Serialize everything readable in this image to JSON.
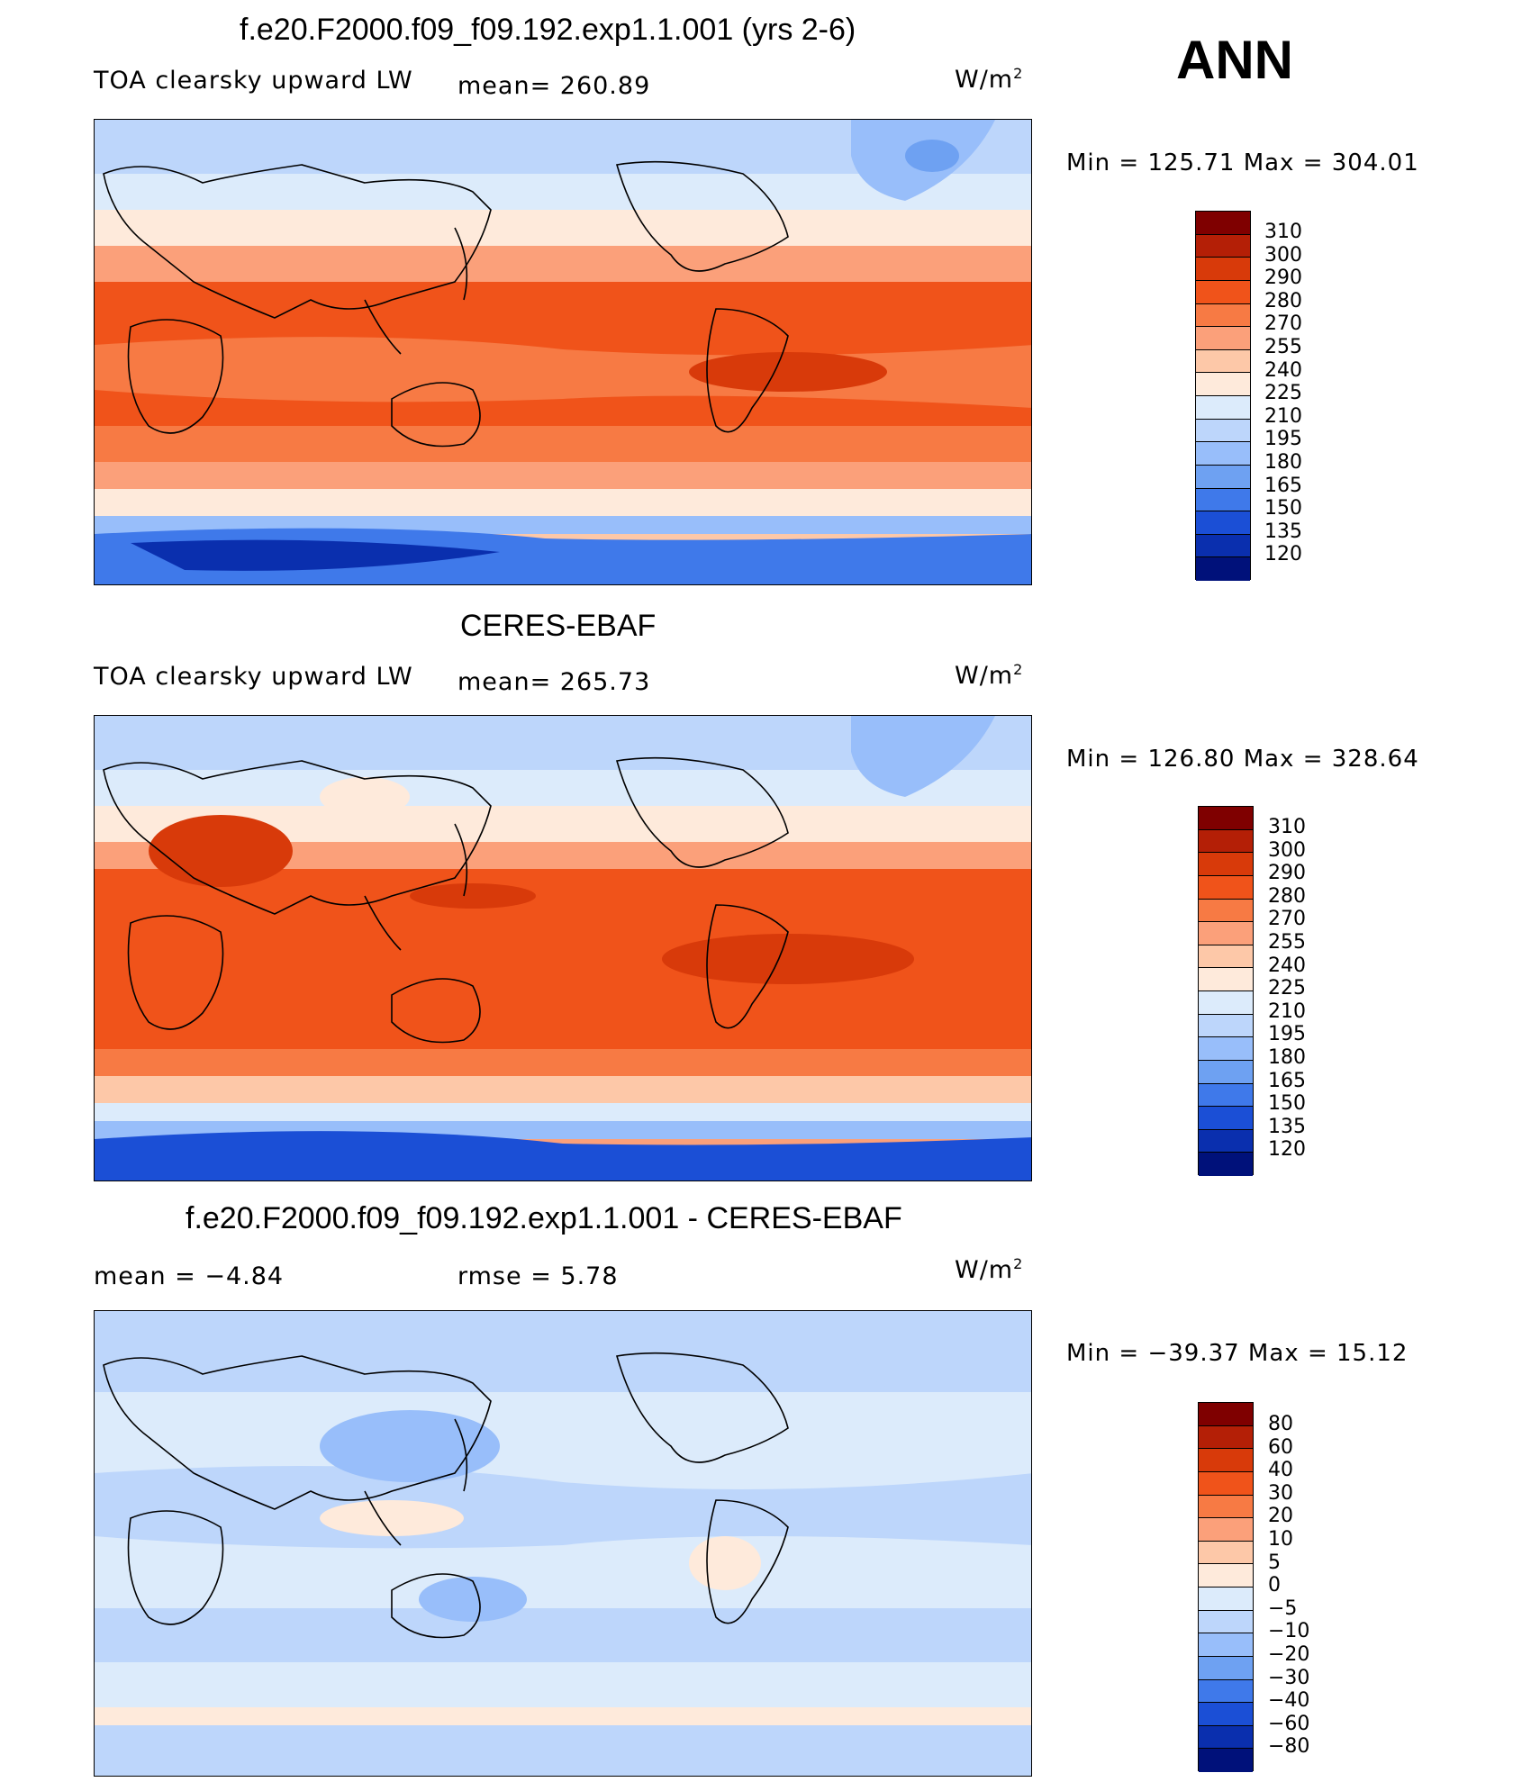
{
  "season": "ANN",
  "unit_base": "W/m",
  "unit_exp": "2",
  "panels": [
    {
      "title": "f.e20.F2000.f09_f09.192.exp1.1.001 (yrs 2-6)",
      "left_label": "TOA clearsky upward LW",
      "mid_label": "mean=  260.89",
      "minmax": "Min  =  125.71  Max  =  304.01",
      "levels": [
        "310",
        "300",
        "290",
        "280",
        "270",
        "255",
        "240",
        "225",
        "210",
        "195",
        "180",
        "165",
        "150",
        "135",
        "120"
      ]
    },
    {
      "title": "CERES-EBAF",
      "left_label": "TOA clearsky upward LW",
      "mid_label": "mean=  265.73",
      "minmax": "Min  =  126.80  Max  =  328.64",
      "levels": [
        "310",
        "300",
        "290",
        "280",
        "270",
        "255",
        "240",
        "225",
        "210",
        "195",
        "180",
        "165",
        "150",
        "135",
        "120"
      ]
    },
    {
      "title": "f.e20.F2000.f09_f09.192.exp1.1.001 - CERES-EBAF",
      "left_label": "mean  =     −4.84",
      "mid_label": "rmse  =     5.78",
      "minmax": "Min  =  −39.37  Max  =    15.12",
      "levels": [
        "80",
        "60",
        "40",
        "30",
        "20",
        "10",
        "5",
        "0",
        "−5",
        "−10",
        "−20",
        "−30",
        "−40",
        "−60",
        "−80"
      ]
    }
  ],
  "colorbar_colors": [
    "#7f0000",
    "#b41f06",
    "#d83a0a",
    "#f0531a",
    "#f77a44",
    "#fba07a",
    "#fdc8a8",
    "#feeadb",
    "#dcebfb",
    "#bdd6fb",
    "#98befa",
    "#6ea1f2",
    "#3f79ea",
    "#1b4fd6",
    "#0a2fae",
    "#00117a"
  ]
}
